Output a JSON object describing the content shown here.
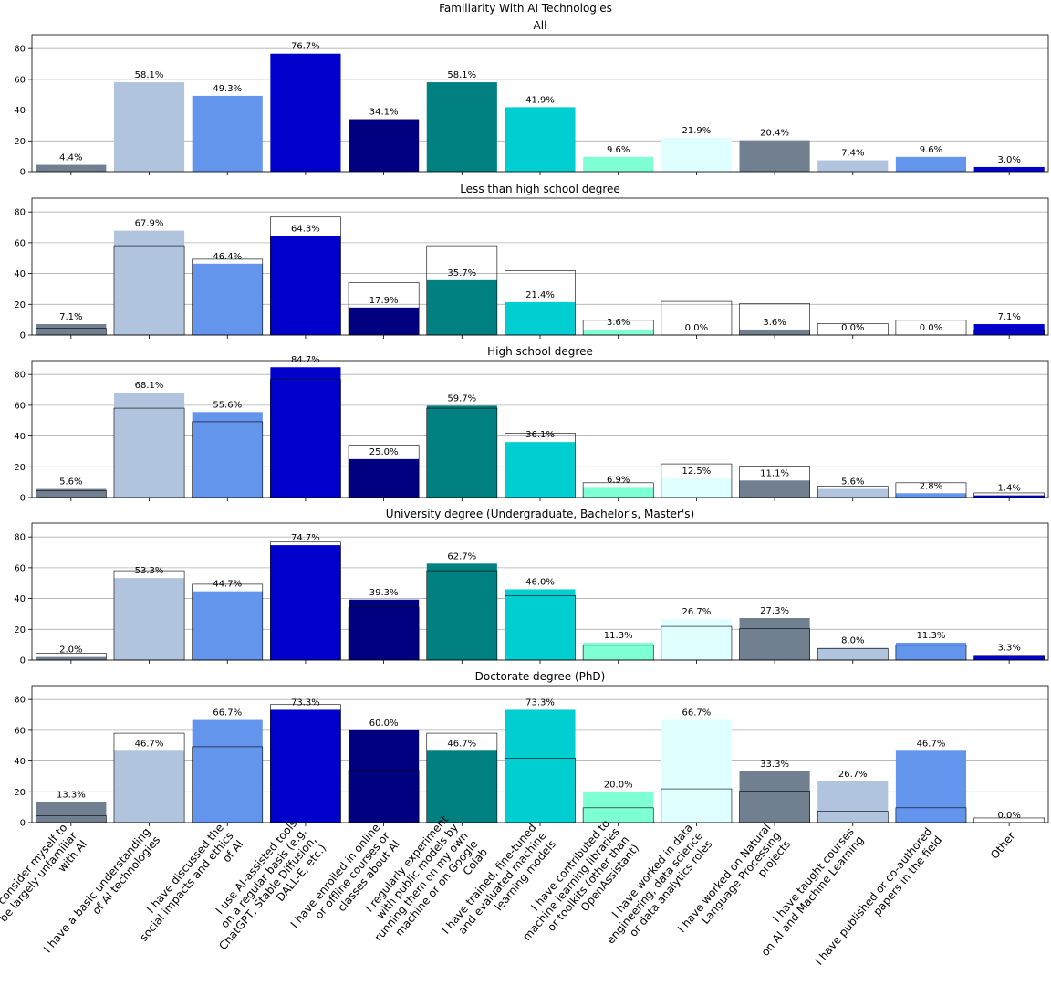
{
  "chart_data": {
    "type": "bar",
    "title": "Familiarity With AI Technologies",
    "categories": [
      "I consider myself to be largely unfamiliar with AI",
      "I have a basic understanding of AI technologies",
      "I have discussed the social impacts and ethics of AI",
      "I use AI-assisted tools on a regular basis (e.g. ChatGPT, Stable Diffusion, DALL-E, etc.)",
      "I have enrolled in online or offline courses or classes about AI",
      "I regularly experiment with public models by running them on my own machine or on Google Colab",
      "I have trained, fine-tuned and evaluated machine learning models",
      "I have contributed to machine learning libraries or toolkits (other than OpenAssistant)",
      "I have worked in data engineering, data science or data analytics roles",
      "I have worked on Natural Language Processing projects",
      "I have taught courses on AI and Machine Learning",
      "I have published or co-authored papers in the field",
      "Other"
    ],
    "category_lines": [
      [
        "I consider myself to",
        "be largely unfamiliar",
        "with AI"
      ],
      [
        "I have a basic understanding",
        "of AI technologies"
      ],
      [
        "I have discussed the",
        "social impacts and ethics",
        "of AI"
      ],
      [
        "I use AI-assisted tools",
        "on a regular basis (e.g.",
        "ChatGPT, Stable Diffusion,",
        "DALL-E, etc.)"
      ],
      [
        "I have enrolled in online",
        "or offline courses or",
        "classes about AI"
      ],
      [
        "I regularly experiment",
        "with public models by",
        "running them on my own",
        "machine or on Google",
        "Colab"
      ],
      [
        "I have trained, fine-tuned",
        "and evaluated machine",
        "learning models"
      ],
      [
        "I have contributed to",
        "machine learning libraries",
        "or toolkits (other than",
        "OpenAssistant)"
      ],
      [
        "I have worked in data",
        "engineering, data science",
        "or data analytics roles"
      ],
      [
        "I have worked on Natural",
        "Language Processing",
        "projects"
      ],
      [
        "I have taught courses",
        "on AI and Machine Learning"
      ],
      [
        "I have published or co-authored",
        "papers in the field"
      ],
      [
        "Other"
      ]
    ],
    "colors": [
      "#708090",
      "#b0c4de",
      "#6495ed",
      "#0000cd",
      "#000080",
      "#008080",
      "#00ced1",
      "#7fffd4",
      "#e0ffff",
      "#708090",
      "#b0c4de",
      "#6495ed",
      "#0000cd"
    ],
    "ylim": [
      0,
      89
    ],
    "yticks": [
      0,
      20,
      40,
      60,
      80
    ],
    "grid": true,
    "reference_series": "All",
    "panels": [
      {
        "title": "All",
        "values": [
          4.4,
          58.1,
          49.3,
          76.7,
          34.1,
          58.1,
          41.9,
          9.6,
          21.9,
          20.4,
          7.4,
          9.6,
          3.0
        ],
        "labels": [
          "4.4%",
          "58.1%",
          "49.3%",
          "76.7%",
          "34.1%",
          "58.1%",
          "41.9%",
          "9.6%",
          "21.9%",
          "20.4%",
          "7.4%",
          "9.6%",
          "3.0%"
        ]
      },
      {
        "title": "Less than high school degree",
        "values": [
          7.1,
          67.9,
          46.4,
          64.3,
          17.9,
          35.7,
          21.4,
          3.6,
          0.0,
          3.6,
          0.0,
          0.0,
          7.1
        ],
        "labels": [
          "7.1%",
          "67.9%",
          "46.4%",
          "64.3%",
          "17.9%",
          "35.7%",
          "21.4%",
          "3.6%",
          "0.0%",
          "3.6%",
          "0.0%",
          "0.0%",
          "7.1%"
        ]
      },
      {
        "title": "High school degree",
        "values": [
          5.6,
          68.1,
          55.6,
          84.7,
          25.0,
          59.7,
          36.1,
          6.9,
          12.5,
          11.1,
          5.6,
          2.8,
          1.4
        ],
        "labels": [
          "5.6%",
          "68.1%",
          "55.6%",
          "84.7%",
          "25.0%",
          "59.7%",
          "36.1%",
          "6.9%",
          "12.5%",
          "11.1%",
          "5.6%",
          "2.8%",
          "1.4%"
        ]
      },
      {
        "title": "University degree (Undergraduate, Bachelor's, Master's)",
        "values": [
          2.0,
          53.3,
          44.7,
          74.7,
          39.3,
          62.7,
          46.0,
          11.3,
          26.7,
          27.3,
          8.0,
          11.3,
          3.3
        ],
        "labels": [
          "2.0%",
          "53.3%",
          "44.7%",
          "74.7%",
          "39.3%",
          "62.7%",
          "46.0%",
          "11.3%",
          "26.7%",
          "27.3%",
          "8.0%",
          "11.3%",
          "3.3%"
        ]
      },
      {
        "title": "Doctorate degree (PhD)",
        "values": [
          13.3,
          46.7,
          66.7,
          73.3,
          60.0,
          46.7,
          73.3,
          20.0,
          66.7,
          33.3,
          26.7,
          46.7,
          0.0
        ],
        "labels": [
          "13.3%",
          "46.7%",
          "66.7%",
          "73.3%",
          "60.0%",
          "46.7%",
          "73.3%",
          "20.0%",
          "66.7%",
          "33.3%",
          "26.7%",
          "46.7%",
          "0.0%"
        ]
      }
    ]
  }
}
